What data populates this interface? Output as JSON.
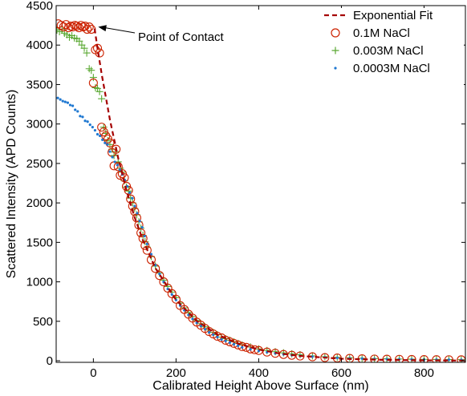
{
  "chart_data": {
    "type": "scatter",
    "title": "",
    "xlabel": "Calibrated Height Above Surface (nm)",
    "ylabel": "Scattered Intensity (APD Counts)",
    "xlim": [
      -90,
      900
    ],
    "ylim": [
      -20,
      4500
    ],
    "xticks": [
      0,
      200,
      400,
      600,
      800
    ],
    "yticks": [
      0,
      500,
      1000,
      1500,
      2000,
      2500,
      3000,
      3500,
      4000,
      4500
    ],
    "grid": false,
    "legend_position": "top-right",
    "annotation": {
      "text": "Point of Contact",
      "x": 0,
      "y": 4210
    },
    "colors": {
      "fit": "#a50000",
      "circle": "#cc2200",
      "plus": "#5aa832",
      "dot": "#1f78d1"
    },
    "fit": {
      "name": "Exponential Fit",
      "style": "dashed",
      "x": [
        3,
        10,
        20,
        40,
        60,
        80,
        100,
        120,
        150,
        200,
        250,
        300,
        350,
        400,
        450,
        500,
        600,
        700,
        800,
        900
      ],
      "y": [
        4210,
        3962,
        3633,
        3054,
        2568,
        2159,
        1815,
        1526,
        1176,
        771,
        505,
        331,
        217,
        142,
        93,
        61,
        26,
        11,
        5,
        2
      ]
    },
    "series": [
      {
        "name": "0.1M NaCl",
        "marker": "circle",
        "x": [
          -85,
          -78,
          -72,
          -66,
          -60,
          -55,
          -50,
          -45,
          -40,
          -35,
          -30,
          -25,
          -20,
          -15,
          -10,
          -5,
          0,
          5,
          10,
          15,
          20,
          25,
          30,
          35,
          40,
          45,
          50,
          55,
          60,
          65,
          70,
          75,
          80,
          85,
          90,
          95,
          100,
          105,
          110,
          115,
          120,
          125,
          130,
          140,
          150,
          160,
          170,
          180,
          190,
          200,
          210,
          220,
          230,
          240,
          250,
          260,
          270,
          280,
          290,
          300,
          310,
          320,
          330,
          340,
          350,
          360,
          370,
          380,
          390,
          400,
          420,
          440,
          460,
          480,
          500,
          530,
          560,
          590,
          620,
          650,
          680,
          710,
          740,
          770,
          800,
          830,
          860,
          890
        ],
        "y": [
          4270,
          4250,
          4230,
          4260,
          4220,
          4240,
          4230,
          4250,
          4240,
          4220,
          4250,
          4230,
          4240,
          4200,
          4230,
          4200,
          3520,
          3940,
          3960,
          3900,
          2960,
          2900,
          2850,
          2810,
          2760,
          2640,
          2470,
          2680,
          2460,
          2350,
          2370,
          2320,
          2210,
          2160,
          2050,
          1960,
          1890,
          1810,
          1720,
          1620,
          1550,
          1460,
          1400,
          1280,
          1170,
          1080,
          1000,
          920,
          850,
          780,
          700,
          650,
          590,
          540,
          490,
          450,
          410,
          370,
          340,
          310,
          290,
          260,
          240,
          220,
          200,
          180,
          170,
          150,
          140,
          130,
          110,
          95,
          80,
          70,
          60,
          50,
          40,
          35,
          30,
          25,
          22,
          20,
          18,
          16,
          15,
          14,
          13,
          12
        ]
      },
      {
        "name": "0.003M NaCl",
        "marker": "plus",
        "x": [
          -88,
          -82,
          -76,
          -70,
          -64,
          -58,
          -52,
          -46,
          -40,
          -34,
          -28,
          -22,
          -16,
          -10,
          -5,
          0,
          5,
          10,
          15,
          20,
          25,
          30,
          35,
          40,
          45,
          50,
          55,
          60,
          65,
          70,
          75,
          80,
          85,
          90,
          95,
          100,
          105,
          110,
          115,
          120,
          125,
          130,
          140,
          150,
          160,
          170,
          180,
          190,
          200,
          210,
          220,
          230,
          240,
          250,
          260,
          270,
          280,
          290,
          300,
          310,
          320,
          330,
          340,
          350,
          360,
          380,
          400,
          420,
          440,
          460,
          480,
          500,
          530,
          560,
          590,
          620,
          650,
          680,
          710,
          740,
          770,
          800,
          830,
          860,
          890
        ],
        "y": [
          4190,
          4170,
          4200,
          4150,
          4130,
          4100,
          4120,
          4090,
          4080,
          4050,
          4000,
          3960,
          3900,
          3700,
          3680,
          3590,
          3460,
          3450,
          3410,
          3320,
          2960,
          2880,
          2790,
          2740,
          2680,
          2600,
          2650,
          2520,
          2440,
          2390,
          2280,
          2200,
          2150,
          2060,
          2000,
          1930,
          1850,
          1760,
          1680,
          1590,
          1510,
          1440,
          1320,
          1200,
          1110,
          1020,
          940,
          870,
          800,
          730,
          670,
          610,
          560,
          510,
          470,
          430,
          390,
          360,
          330,
          300,
          280,
          260,
          240,
          220,
          200,
          175,
          150,
          130,
          115,
          100,
          88,
          76,
          62,
          52,
          44,
          38,
          32,
          28,
          25,
          22,
          20,
          18,
          16,
          15,
          14
        ]
      },
      {
        "name": "0.0003M NaCl",
        "marker": "dot",
        "x": [
          -86,
          -80,
          -74,
          -68,
          -62,
          -56,
          -50,
          -44,
          -38,
          -32,
          -26,
          -20,
          -14,
          -8,
          -2,
          4,
          10,
          16,
          22,
          28,
          34,
          40,
          46,
          52,
          58,
          64,
          70,
          76,
          82,
          88,
          94,
          100,
          106,
          112,
          118,
          124,
          130,
          140,
          150,
          160,
          170,
          180,
          190,
          200,
          210,
          220,
          230,
          240,
          250,
          260,
          270,
          280,
          290,
          300,
          310,
          320,
          330,
          340,
          350,
          360,
          380,
          400,
          420,
          440,
          460,
          480,
          500,
          530,
          560,
          590,
          620,
          650,
          680,
          710,
          740,
          770,
          800,
          830,
          860,
          890
        ],
        "y": [
          3330,
          3310,
          3290,
          3280,
          3270,
          3240,
          3230,
          3180,
          3160,
          3100,
          3090,
          3040,
          3030,
          2990,
          2960,
          2920,
          2870,
          2850,
          2800,
          2760,
          2740,
          2650,
          2580,
          2520,
          2480,
          2420,
          2360,
          2290,
          2210,
          2130,
          2060,
          1960,
          1870,
          1770,
          1690,
          1580,
          1480,
          1350,
          1210,
          1100,
          1000,
          910,
          840,
          770,
          700,
          640,
          580,
          530,
          480,
          440,
          400,
          360,
          330,
          300,
          270,
          250,
          230,
          210,
          190,
          170,
          145,
          125,
          108,
          94,
          82,
          72,
          63,
          52,
          44,
          37,
          32,
          28,
          24,
          21,
          19,
          17,
          15,
          14,
          13,
          12
        ]
      }
    ]
  }
}
